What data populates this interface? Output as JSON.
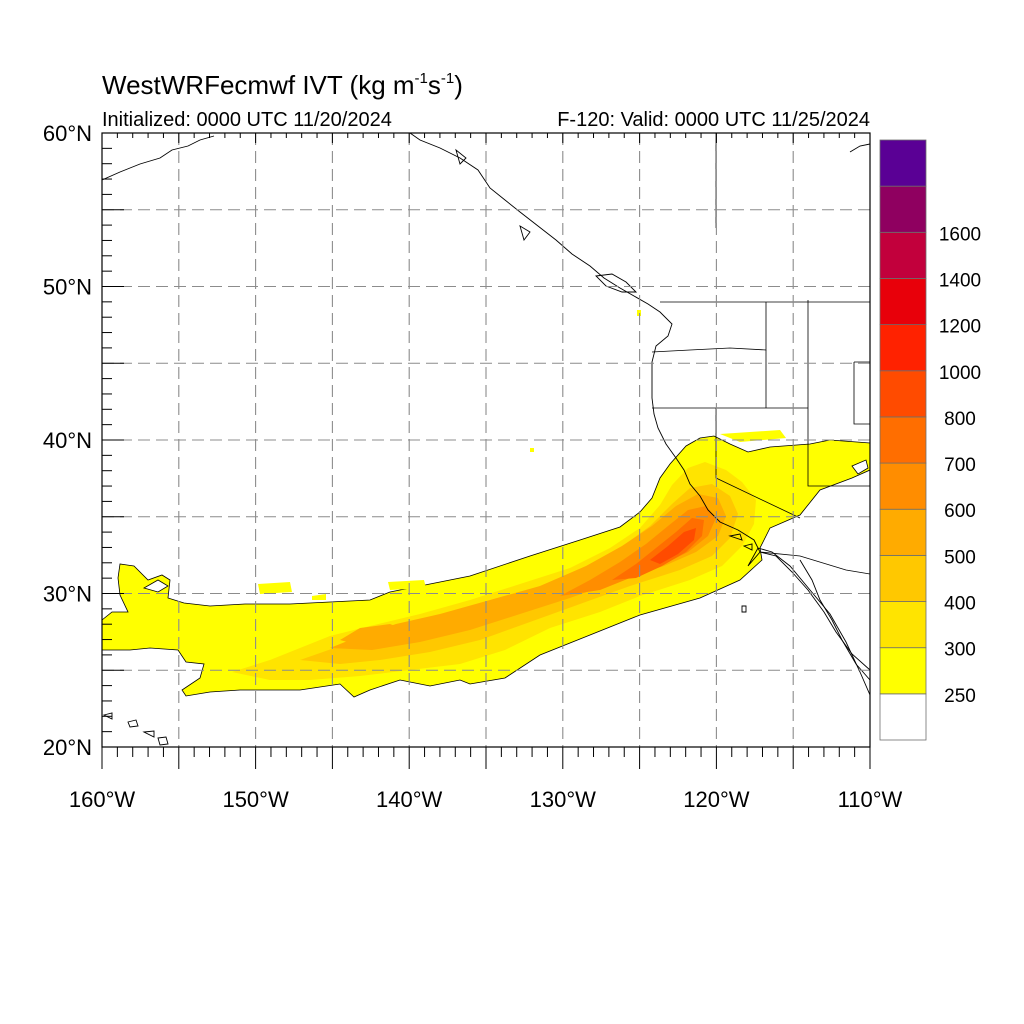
{
  "title": {
    "model": "WestWRFecmwf",
    "var": "IVT",
    "units_pre": "(kg m",
    "units_exp1": "-1",
    "units_mid": "s",
    "units_exp2": "-1",
    "units_post": ")"
  },
  "initialized": "Initialized: 0000 UTC 11/20/2024",
  "valid": "F-120: Valid: 0000 UTC 11/25/2024",
  "map": {
    "lon_range": [
      -160,
      -110
    ],
    "lat_range": [
      20,
      60
    ],
    "lon_labels": [
      {
        "lon": -160,
        "text": "160°W"
      },
      {
        "lon": -150,
        "text": "150°W"
      },
      {
        "lon": -140,
        "text": "140°W"
      },
      {
        "lon": -130,
        "text": "130°W"
      },
      {
        "lon": -120,
        "text": "120°W"
      },
      {
        "lon": -110,
        "text": "110°W"
      }
    ],
    "lat_labels": [
      {
        "lat": 60,
        "text": "60°N"
      },
      {
        "lat": 50,
        "text": "50°N"
      },
      {
        "lat": 40,
        "text": "40°N"
      },
      {
        "lat": 30,
        "text": "30°N"
      },
      {
        "lat": 20,
        "text": "20°N"
      }
    ],
    "grid_lon": [
      -155,
      -150,
      -145,
      -140,
      -135,
      -130,
      -125,
      -120,
      -115
    ],
    "grid_lat": [
      25,
      30,
      35,
      40,
      45,
      50,
      55
    ],
    "grid_style": "dashed gray"
  },
  "colorbar": {
    "colors": [
      "#ffffff",
      "#ffff00",
      "#ffe400",
      "#ffc800",
      "#ffab00",
      "#ff8d00",
      "#ff6e00",
      "#ff4b00",
      "#ff2200",
      "#e8000a",
      "#c2003c",
      "#8f0060",
      "#5a0095"
    ],
    "labels": [
      "250",
      "300",
      "400",
      "500",
      "600",
      "700",
      "800",
      "1000",
      "1200",
      "1400",
      "1600"
    ]
  }
}
